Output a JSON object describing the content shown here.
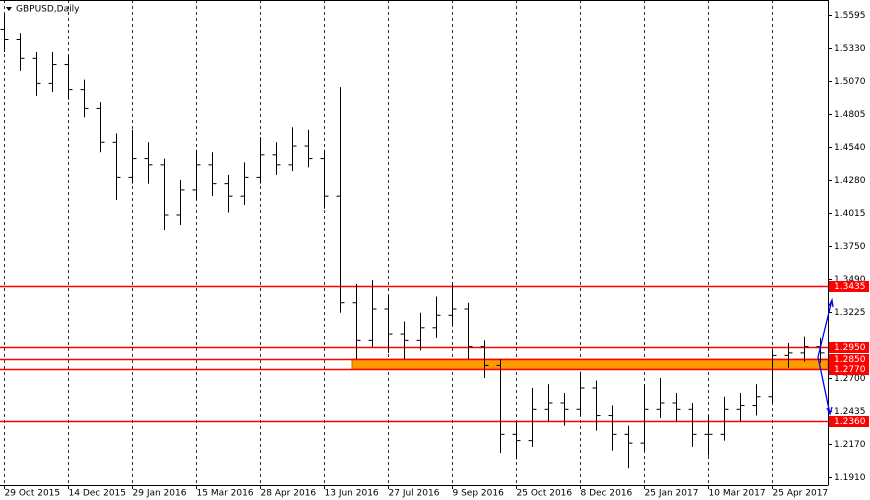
{
  "chart_data": {
    "type": "ohlc",
    "title": "GBPUSD,Daily",
    "color": "#000000",
    "level_color": "#ff0000",
    "zone_color": "#ff9900",
    "grid": true,
    "ylim": [
      1.1846,
      1.5715
    ],
    "yticks": [
      1.5595,
      {
        "value": 1.533,
        "label": "1.5330"
      },
      {
        "value": 1.507,
        "label": "1.5070"
      },
      1.4805,
      {
        "value": 1.454,
        "label": "1.4540"
      },
      {
        "value": 1.428,
        "label": "1.4280"
      },
      1.4015,
      {
        "value": 1.375,
        "label": "1.3750"
      },
      {
        "value": 1.349,
        "label": "1.3490"
      },
      1.3225,
      {
        "value": 1.27,
        "label": "1.2700"
      },
      1.2435,
      {
        "value": 1.217,
        "label": "1.2170"
      },
      {
        "value": 1.191,
        "label": "1.1910"
      }
    ],
    "levels": [
      1.3435,
      {
        "value": 1.295,
        "label": "1.2950"
      },
      {
        "value": 1.285,
        "label": "1.2850"
      },
      {
        "value": 1.277,
        "label": "1.2770"
      },
      {
        "value": 1.236,
        "label": "1.2360"
      }
    ],
    "categories": [
      "29 Oct 2015",
      null,
      null,
      null,
      "14 Dec 2015",
      null,
      null,
      null,
      "29 Jan 2016",
      null,
      null,
      null,
      "15 Mar 2016",
      null,
      null,
      null,
      "28 Apr 2016",
      null,
      null,
      null,
      "13 Jun 2016",
      null,
      null,
      null,
      "27 Jul 2016",
      null,
      null,
      null,
      "9 Sep 2016",
      null,
      null,
      null,
      "25 Oct 2016",
      null,
      null,
      null,
      "8 Dec 2016",
      null,
      null,
      null,
      "25 Jan 2017",
      null,
      null,
      null,
      "10 Mar 2017",
      null,
      null,
      null,
      "25 Apr 2017",
      null,
      null,
      null
    ],
    "values": [
      [
        1.548,
        1.56,
        1.53,
        1.54
      ],
      [
        1.54,
        1.545,
        1.515,
        1.525
      ],
      [
        1.525,
        1.53,
        1.495,
        1.505
      ],
      [
        1.505,
        1.53,
        1.498,
        1.52
      ],
      [
        1.52,
        1.528,
        1.492,
        1.5
      ],
      [
        1.5,
        1.508,
        1.478,
        1.485
      ],
      [
        1.485,
        1.49,
        1.45,
        1.458
      ],
      [
        1.458,
        1.465,
        1.412,
        1.43
      ],
      [
        1.43,
        1.468,
        1.425,
        1.445
      ],
      [
        1.445,
        1.458,
        1.425,
        1.44
      ],
      [
        1.44,
        1.445,
        1.388,
        1.4
      ],
      [
        1.4,
        1.428,
        1.392,
        1.42
      ],
      [
        1.42,
        1.452,
        1.412,
        1.44
      ],
      [
        1.44,
        1.45,
        1.415,
        1.425
      ],
      [
        1.425,
        1.432,
        1.402,
        1.415
      ],
      [
        1.415,
        1.442,
        1.408,
        1.43
      ],
      [
        1.43,
        1.462,
        1.425,
        1.448
      ],
      [
        1.448,
        1.458,
        1.432,
        1.44
      ],
      [
        1.44,
        1.47,
        1.435,
        1.455
      ],
      [
        1.455,
        1.468,
        1.438,
        1.445
      ],
      [
        1.445,
        1.452,
        1.405,
        1.415
      ],
      [
        1.415,
        1.502,
        1.322,
        1.33
      ],
      [
        1.33,
        1.345,
        1.285,
        1.3
      ],
      [
        1.3,
        1.348,
        1.295,
        1.325
      ],
      [
        1.325,
        1.335,
        1.29,
        1.305
      ],
      [
        1.305,
        1.315,
        1.285,
        1.3
      ],
      [
        1.3,
        1.322,
        1.292,
        1.31
      ],
      [
        1.31,
        1.335,
        1.302,
        1.32
      ],
      [
        1.32,
        1.345,
        1.312,
        1.325
      ],
      [
        1.325,
        1.33,
        1.285,
        1.295
      ],
      [
        1.295,
        1.3,
        1.27,
        1.28
      ],
      [
        1.28,
        1.285,
        1.21,
        1.225
      ],
      [
        1.225,
        1.235,
        1.205,
        1.22
      ],
      [
        1.22,
        1.262,
        1.215,
        1.245
      ],
      [
        1.245,
        1.265,
        1.235,
        1.25
      ],
      [
        1.25,
        1.258,
        1.232,
        1.245
      ],
      [
        1.245,
        1.275,
        1.24,
        1.262
      ],
      [
        1.262,
        1.268,
        1.228,
        1.24
      ],
      [
        1.24,
        1.248,
        1.212,
        1.225
      ],
      [
        1.225,
        1.232,
        1.198,
        1.218
      ],
      [
        1.218,
        1.265,
        1.212,
        1.245
      ],
      [
        1.245,
        1.27,
        1.238,
        1.25
      ],
      [
        1.25,
        1.258,
        1.235,
        1.245
      ],
      [
        1.245,
        1.25,
        1.215,
        1.225
      ],
      [
        1.225,
        1.24,
        1.208,
        1.225
      ],
      [
        1.225,
        1.255,
        1.22,
        1.245
      ],
      [
        1.245,
        1.258,
        1.235,
        1.248
      ],
      [
        1.248,
        1.265,
        1.24,
        1.255
      ],
      [
        1.255,
        1.292,
        1.25,
        1.288
      ],
      [
        1.288,
        1.298,
        1.278,
        1.29
      ],
      [
        1.29,
        1.303,
        1.283,
        1.295
      ],
      [
        1.295,
        1.302,
        1.282,
        1.29
      ]
    ]
  }
}
